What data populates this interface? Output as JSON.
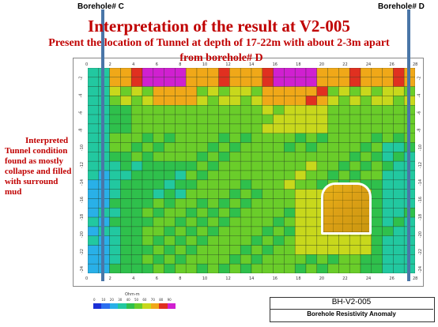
{
  "boreholes": {
    "left_label": "Borehole# C",
    "right_label": "Borehole# D"
  },
  "title": "Interpretation of the result at V2-005",
  "subtitle_line1": "Present the location of Tunnel at depth of 17-22m with about 2-3m apart",
  "subtitle_line2": "from  borehole# D",
  "side_note": [
    "Interpreted",
    "Tunnel condition",
    "found as mostly",
    "collapse and filled",
    "with surround",
    "mud"
  ],
  "x_ticks": [
    "0",
    "2",
    "4",
    "6",
    "8",
    "10",
    "12",
    "14",
    "16",
    "18",
    "20",
    "22",
    "24",
    "26",
    "28"
  ],
  "y_ticks": [
    "-2",
    "-4",
    "-6",
    "-8",
    "-10",
    "-12",
    "-14",
    "-16",
    "-18",
    "-20",
    "-22",
    "-24"
  ],
  "colorbar": {
    "unit": "Ohm-m",
    "ticks": [
      "0",
      "10",
      "20",
      "30",
      "40",
      "50",
      "60",
      "70",
      "80",
      "90"
    ],
    "colors": [
      "#1a2fd6",
      "#2a6ef0",
      "#29b0e8",
      "#22c8a0",
      "#2fc04c",
      "#6acd2a",
      "#c8d81c",
      "#f0a818",
      "#e03020",
      "#d020d0"
    ]
  },
  "info_box": {
    "title": "BH-V2-005",
    "subtitle": "Borehole Resistivity Anomaly"
  },
  "colors": {
    "title_red": "#c00000",
    "borehole_blue": "#4a76a8",
    "tunnel_outline": "#ffffff"
  }
}
